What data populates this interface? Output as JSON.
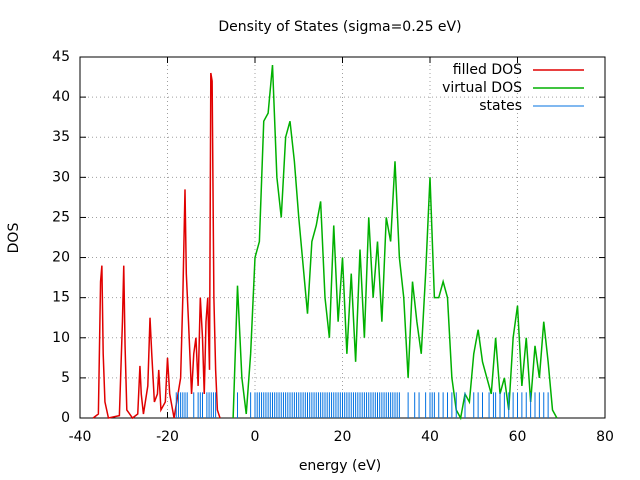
{
  "chart_data": {
    "type": "line",
    "title": "Density of States (sigma=0.25 eV)",
    "xlabel": "energy (eV)",
    "ylabel": "DOS",
    "xlim": [
      -40,
      80
    ],
    "xticks": [
      -40,
      -20,
      0,
      20,
      40,
      60,
      80
    ],
    "ylim": [
      0,
      45
    ],
    "yticks": [
      0,
      5,
      10,
      15,
      20,
      25,
      30,
      35,
      40,
      45
    ],
    "grid": true,
    "legend": "top-right",
    "series": [
      {
        "name": "filled DOS",
        "color": "#e00000",
        "style": "line",
        "x": [
          -37,
          -35.8,
          -35.3,
          -35,
          -34.7,
          -34.3,
          -33.5,
          -31,
          -30.3,
          -30,
          -29.7,
          -29.3,
          -28,
          -26.8,
          -26.3,
          -26,
          -25.5,
          -24.5,
          -24,
          -23.6,
          -23,
          -22.3,
          -22,
          -21.5,
          -20.5,
          -20,
          -19.5,
          -18.5,
          -17,
          -16.5,
          -16,
          -15.7,
          -15.2,
          -14.5,
          -14,
          -13.5,
          -13,
          -12.5,
          -12,
          -11.6,
          -11.2,
          -10.8,
          -10.4,
          -10.1,
          -9.8,
          -9.4,
          -9,
          -8.6,
          -8
        ],
        "values": [
          0,
          0.5,
          17,
          19,
          8,
          2,
          0,
          0.3,
          12,
          19,
          9,
          1,
          0,
          0.5,
          6.5,
          3,
          0.5,
          4,
          12.5,
          8,
          2,
          3,
          6,
          1,
          2,
          7.5,
          3,
          0,
          5,
          15,
          28.5,
          18,
          12,
          3,
          8,
          10,
          4,
          15,
          10,
          3,
          12,
          15,
          6,
          43,
          42,
          15,
          6,
          1,
          0
        ]
      },
      {
        "name": "virtual DOS",
        "color": "#00b000",
        "style": "line",
        "x": [
          -5,
          -4,
          -3,
          -2,
          -1,
          0,
          1,
          2,
          3,
          4,
          5,
          6,
          7,
          8,
          9,
          10,
          11,
          12,
          13,
          14,
          15,
          16,
          17,
          18,
          19,
          20,
          21,
          22,
          23,
          24,
          25,
          26,
          27,
          28,
          29,
          30,
          31,
          32,
          33,
          34,
          35,
          36,
          37,
          38,
          39,
          40,
          41,
          42,
          43,
          44,
          45,
          46,
          47,
          48,
          49,
          50,
          51,
          52,
          53,
          54,
          55,
          56,
          57,
          58,
          59,
          60,
          61,
          62,
          63,
          64,
          65,
          66,
          67,
          68,
          69
        ],
        "values": [
          0,
          16.5,
          5,
          0.5,
          8,
          20,
          22,
          37,
          38,
          44,
          30,
          25,
          35,
          37,
          32,
          25,
          19,
          13,
          22,
          24,
          27,
          15,
          10,
          24,
          12,
          20,
          8,
          18,
          7,
          21,
          10,
          25,
          15,
          22,
          12,
          25,
          22,
          32,
          20,
          15,
          5,
          17,
          12,
          8,
          18,
          30,
          15,
          15,
          17,
          15,
          5,
          1,
          0,
          3,
          2,
          8,
          11,
          7,
          5,
          3,
          10,
          3,
          5,
          1,
          10,
          14,
          4,
          10,
          2,
          9,
          5,
          12,
          7,
          1,
          0
        ]
      },
      {
        "name": "states",
        "color": "#0070e0",
        "style": "impulses",
        "height": 3.2,
        "x": [
          -18,
          -17.5,
          -17,
          -16.5,
          -16,
          -15.5,
          -14,
          -13,
          -12.5,
          -12,
          -11,
          -10.5,
          -10,
          -9.5,
          -9,
          -4,
          -1,
          0,
          0.5,
          1,
          1.5,
          2,
          2.5,
          3,
          3.5,
          4,
          4.5,
          5,
          5.5,
          6,
          6.5,
          7,
          7.5,
          8,
          8.5,
          9,
          9.5,
          10,
          10.5,
          11,
          11.5,
          12,
          12.5,
          13,
          13.5,
          14,
          14.5,
          15,
          15.5,
          16,
          16.5,
          17,
          17.5,
          18,
          18.5,
          19,
          19.5,
          20,
          20.5,
          21,
          21.5,
          22,
          22.5,
          23,
          23.5,
          24,
          24.5,
          25,
          25.5,
          26,
          26.5,
          27,
          27.5,
          28,
          28.5,
          29,
          29.5,
          30,
          30.5,
          31,
          31.5,
          32,
          32.5,
          33,
          35,
          36.5,
          37.5,
          39,
          40,
          40.5,
          41,
          42,
          43,
          44,
          45,
          46,
          48,
          50,
          51,
          52,
          53.5,
          54.5,
          55,
          56,
          57,
          58,
          59,
          60,
          61,
          62,
          63,
          64,
          65,
          66,
          67
        ]
      }
    ]
  }
}
